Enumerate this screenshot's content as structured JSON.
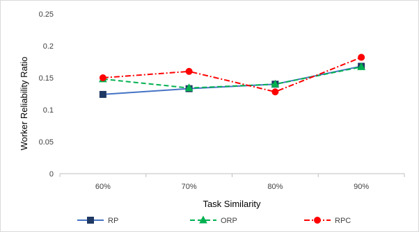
{
  "chart_data": {
    "type": "line",
    "title": "",
    "xlabel": "Task Similarity",
    "ylabel": "Worker Reliability  Ratio",
    "categories": [
      "60%",
      "70%",
      "80%",
      "90%"
    ],
    "ylim": [
      0,
      0.25
    ],
    "yticks": [
      0,
      0.05,
      0.1,
      0.15,
      0.2,
      0.25
    ],
    "ytick_labels": [
      "0",
      "0.05",
      "0.1",
      "0.15",
      "0.2",
      "0.25"
    ],
    "grid": false,
    "legend_position": "bottom",
    "series": [
      {
        "name": "RP",
        "values": [
          0.124,
          0.133,
          0.14,
          0.168
        ],
        "color": "#4472c4",
        "marker_color": "#1f3864",
        "marker": "square",
        "line_style": "solid"
      },
      {
        "name": "ORP",
        "values": [
          0.148,
          0.134,
          0.14,
          0.167
        ],
        "color": "#00b050",
        "marker_color": "#00b050",
        "marker": "triangle",
        "line_style": "dashed"
      },
      {
        "name": "RPC",
        "values": [
          0.15,
          0.16,
          0.128,
          0.182
        ],
        "color": "#ff0000",
        "marker_color": "#ff0000",
        "marker": "circle",
        "line_style": "dashdot"
      }
    ]
  }
}
